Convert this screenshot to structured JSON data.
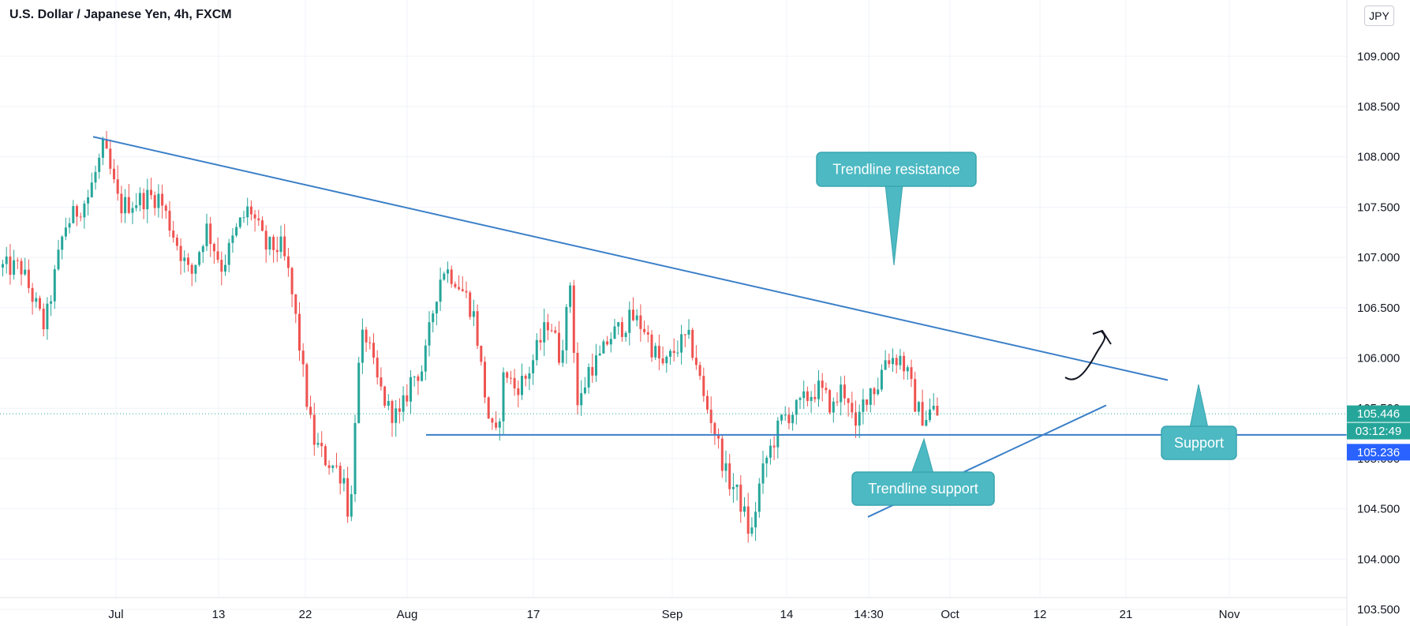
{
  "header": {
    "title": "U.S. Dollar / Japanese Yen, 4h, FXCM",
    "currency": "JPY"
  },
  "price_tags": {
    "last_price": "105.446",
    "countdown": "03:12:49",
    "support_price": "105.236",
    "colors": {
      "last": "#26a69a",
      "support": "#2962ff"
    }
  },
  "annotations": {
    "resistance_label": "Trendline resistance",
    "support_trend_label": "Trendline support",
    "support_label": "Support",
    "callout_color": "#4cb9c3",
    "line_color": "#3a7fc8"
  },
  "chart_data": {
    "type": "candlestick",
    "ylim": [
      103.2,
      109.0
    ],
    "y_ticks": [
      "103.500",
      "104.000",
      "104.500",
      "105.000",
      "105.500",
      "106.000",
      "106.500",
      "107.000",
      "107.500",
      "108.000",
      "108.500",
      "109.000"
    ],
    "x_ticks": [
      "Jul",
      "13",
      "22",
      "Aug",
      "17",
      "Sep",
      "14",
      "14:30",
      "Oct",
      "12",
      "21",
      "Nov"
    ],
    "grid": true,
    "colors": {
      "up": "#26a69a",
      "down": "#ef5350"
    },
    "key_levels": {
      "support": 105.236,
      "last": 105.446,
      "resistance_start": 108.2,
      "resistance_end": 105.78,
      "trend_support_start": 104.42,
      "trend_support_end": 105.53
    },
    "price_path": [
      [
        0,
        106.9
      ],
      [
        25,
        106.9
      ],
      [
        55,
        106.3
      ],
      [
        80,
        107.3
      ],
      [
        110,
        107.6
      ],
      [
        130,
        108.1
      ],
      [
        150,
        107.5
      ],
      [
        185,
        107.6
      ],
      [
        200,
        107.6
      ],
      [
        220,
        107.2
      ],
      [
        240,
        106.8
      ],
      [
        260,
        107.3
      ],
      [
        280,
        106.9
      ],
      [
        300,
        107.3
      ],
      [
        315,
        107.5
      ],
      [
        335,
        107.1
      ],
      [
        355,
        107.1
      ],
      [
        365,
        106.8
      ],
      [
        375,
        106.3
      ],
      [
        385,
        105.7
      ],
      [
        395,
        105.2
      ],
      [
        410,
        105.0
      ],
      [
        425,
        104.9
      ],
      [
        435,
        104.8
      ],
      [
        442,
        104.3
      ],
      [
        450,
        105.7
      ],
      [
        460,
        106.3
      ],
      [
        475,
        105.8
      ],
      [
        490,
        105.5
      ],
      [
        505,
        105.4
      ],
      [
        520,
        105.8
      ],
      [
        535,
        105.9
      ],
      [
        550,
        106.6
      ],
      [
        560,
        106.9
      ],
      [
        575,
        106.8
      ],
      [
        590,
        106.6
      ],
      [
        600,
        106.4
      ],
      [
        610,
        105.8
      ],
      [
        620,
        105.3
      ],
      [
        628,
        105.2
      ],
      [
        638,
        105.9
      ],
      [
        650,
        105.7
      ],
      [
        665,
        105.8
      ],
      [
        680,
        106.1
      ],
      [
        695,
        106.4
      ],
      [
        708,
        106.0
      ],
      [
        718,
        106.5
      ],
      [
        723,
        106.9
      ],
      [
        728,
        105.5
      ],
      [
        735,
        105.6
      ],
      [
        745,
        105.9
      ],
      [
        760,
        106.0
      ],
      [
        770,
        106.2
      ],
      [
        785,
        106.3
      ],
      [
        800,
        106.4
      ],
      [
        815,
        106.3
      ],
      [
        825,
        106.1
      ],
      [
        840,
        105.9
      ],
      [
        855,
        106.1
      ],
      [
        870,
        106.2
      ],
      [
        880,
        106.0
      ],
      [
        890,
        105.6
      ],
      [
        900,
        105.4
      ],
      [
        910,
        105.1
      ],
      [
        920,
        104.8
      ],
      [
        930,
        104.7
      ],
      [
        940,
        104.5
      ],
      [
        950,
        104.2
      ],
      [
        960,
        104.7
      ],
      [
        970,
        105.0
      ],
      [
        980,
        105.2
      ],
      [
        990,
        105.4
      ],
      [
        1010,
        105.5
      ],
      [
        1020,
        105.6
      ],
      [
        1035,
        105.7
      ],
      [
        1045,
        105.6
      ],
      [
        1055,
        105.5
      ],
      [
        1065,
        105.7
      ],
      [
        1075,
        105.6
      ],
      [
        1082,
        105.2
      ],
      [
        1090,
        105.5
      ],
      [
        1100,
        105.7
      ],
      [
        1110,
        105.7
      ],
      [
        1120,
        106.0
      ],
      [
        1130,
        106.0
      ],
      [
        1140,
        106.0
      ],
      [
        1150,
        105.8
      ],
      [
        1160,
        105.5
      ],
      [
        1170,
        105.4
      ],
      [
        1180,
        105.5
      ],
      [
        1190,
        105.4
      ]
    ]
  }
}
